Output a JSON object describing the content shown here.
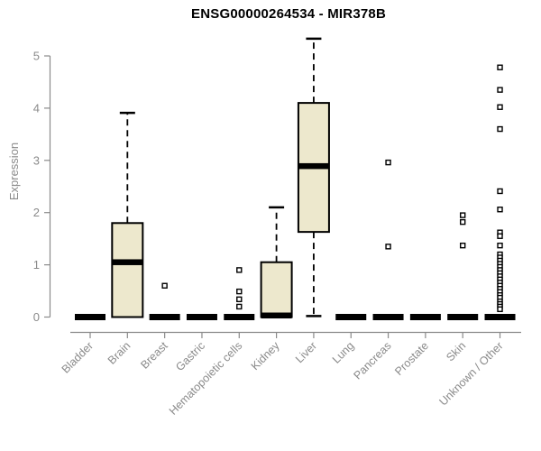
{
  "colors": {
    "background": "#ffffff",
    "box_fill": "#ede8cd",
    "box_stroke": "#000000",
    "median": "#000000",
    "whisker": "#000000",
    "outlier_stroke": "#000000",
    "outlier_fill": "#ffffff",
    "axis": "#8a8a8a",
    "tick_text": "#8a8a8a",
    "title_text": "#000000"
  },
  "chart_data": {
    "type": "boxplot",
    "title": "ENSG00000264534 - MIR378B",
    "subtitle": "",
    "xlabel": "",
    "ylabel": "Expression",
    "ylim": [
      0,
      5.4
    ],
    "yticks": [
      0,
      1,
      2,
      3,
      4,
      5
    ],
    "grid": false,
    "legend": null,
    "categories": [
      "Bladder",
      "Brain",
      "Breast",
      "Gastric",
      "Hematopoietic cells",
      "Kidney",
      "Liver",
      "Lung",
      "Pancreas",
      "Prostate",
      "Skin",
      "Unknown / Other"
    ],
    "series": [
      {
        "category": "Bladder",
        "min": 0,
        "q1": 0,
        "median": 0,
        "q3": 0,
        "max": 0,
        "outliers": []
      },
      {
        "category": "Brain",
        "min": 0,
        "q1": 0,
        "median": 1.05,
        "q3": 1.8,
        "max": 3.91,
        "outliers": []
      },
      {
        "category": "Breast",
        "min": 0,
        "q1": 0,
        "median": 0,
        "q3": 0,
        "max": 0,
        "outliers": [
          0.6
        ]
      },
      {
        "category": "Gastric",
        "min": 0,
        "q1": 0,
        "median": 0,
        "q3": 0,
        "max": 0,
        "outliers": []
      },
      {
        "category": "Hematopoietic cells",
        "min": 0,
        "q1": 0,
        "median": 0,
        "q3": 0,
        "max": 0,
        "outliers": [
          0.9,
          0.49,
          0.34,
          0.2
        ]
      },
      {
        "category": "Kidney",
        "min": 0,
        "q1": 0,
        "median": 0.03,
        "q3": 1.05,
        "max": 2.1,
        "outliers": []
      },
      {
        "category": "Liver",
        "min": 0.02,
        "q1": 1.63,
        "median": 2.89,
        "q3": 4.1,
        "max": 5.33,
        "outliers": []
      },
      {
        "category": "Lung",
        "min": 0,
        "q1": 0,
        "median": 0,
        "q3": 0,
        "max": 0,
        "outliers": []
      },
      {
        "category": "Pancreas",
        "min": 0,
        "q1": 0,
        "median": 0,
        "q3": 0,
        "max": 0,
        "outliers": [
          2.96,
          1.35
        ]
      },
      {
        "category": "Prostate",
        "min": 0,
        "q1": 0,
        "median": 0,
        "q3": 0,
        "max": 0,
        "outliers": []
      },
      {
        "category": "Skin",
        "min": 0,
        "q1": 0,
        "median": 0,
        "q3": 0,
        "max": 0,
        "outliers": [
          1.95,
          1.82,
          1.37
        ]
      },
      {
        "category": "Unknown / Other",
        "min": 0,
        "q1": 0,
        "median": 0,
        "q3": 0,
        "max": 0,
        "outliers": [
          4.78,
          4.35,
          4.02,
          3.6,
          2.41,
          2.06,
          1.62,
          1.55,
          1.37,
          1.2,
          1.14,
          1.08,
          1.02,
          0.96,
          0.9,
          0.84,
          0.78,
          0.72,
          0.66,
          0.6,
          0.54,
          0.48,
          0.42,
          0.37,
          0.3,
          0.25,
          0.2,
          0.15
        ]
      }
    ]
  }
}
